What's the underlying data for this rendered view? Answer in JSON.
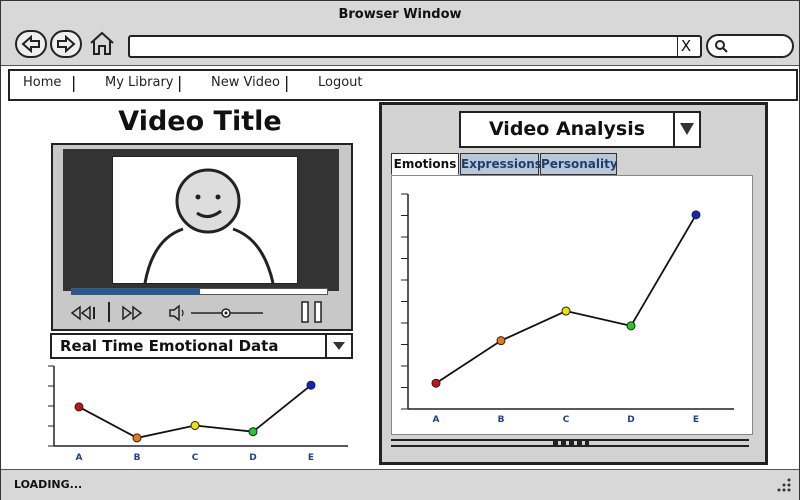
{
  "window": {
    "title": "Browser Window"
  },
  "nav": {
    "back": "back",
    "forward": "forward",
    "home": "home"
  },
  "address": {
    "value": "",
    "clear_label": "X"
  },
  "search": {
    "value": ""
  },
  "menu": {
    "items": [
      "Home",
      "My Library",
      "New Video",
      "Logout"
    ],
    "separators": [
      "|",
      "|",
      "|"
    ]
  },
  "video": {
    "title": "Video Title",
    "progress": 0.5
  },
  "left_dropdown": {
    "selected": "Real Time Emotional Data"
  },
  "analysis": {
    "dropdown_selected": "Video Analysis",
    "tabs": [
      "Emotions",
      "Expressions",
      "Personality"
    ],
    "active_tab": "Emotions"
  },
  "status": {
    "text": "LOADING..."
  },
  "colors": {
    "red": "#cc1111",
    "orange": "#ee7711",
    "yellow": "#f2e000",
    "green": "#22cc22",
    "blue": "#1122cc",
    "accent": "#1f5aa0"
  },
  "chart_data": [
    {
      "type": "line",
      "categories": [
        "A",
        "B",
        "C",
        "D",
        "E"
      ],
      "series": [
        {
          "values": [
            0.55,
            0.05,
            0.25,
            0.15,
            0.9
          ],
          "colors": [
            "#cc1111",
            "#ee7711",
            "#f2e000",
            "#22cc22",
            "#1122cc"
          ]
        }
      ],
      "ylim": [
        0,
        1
      ]
    },
    {
      "type": "line",
      "categories": [
        "A",
        "B",
        "C",
        "D",
        "E"
      ],
      "series": [
        {
          "values": [
            0.08,
            0.31,
            0.47,
            0.39,
            0.99
          ],
          "colors": [
            "#cc1111",
            "#ee7711",
            "#f2e000",
            "#22cc22",
            "#1122cc"
          ]
        }
      ],
      "ylim": [
        0,
        1
      ]
    }
  ]
}
